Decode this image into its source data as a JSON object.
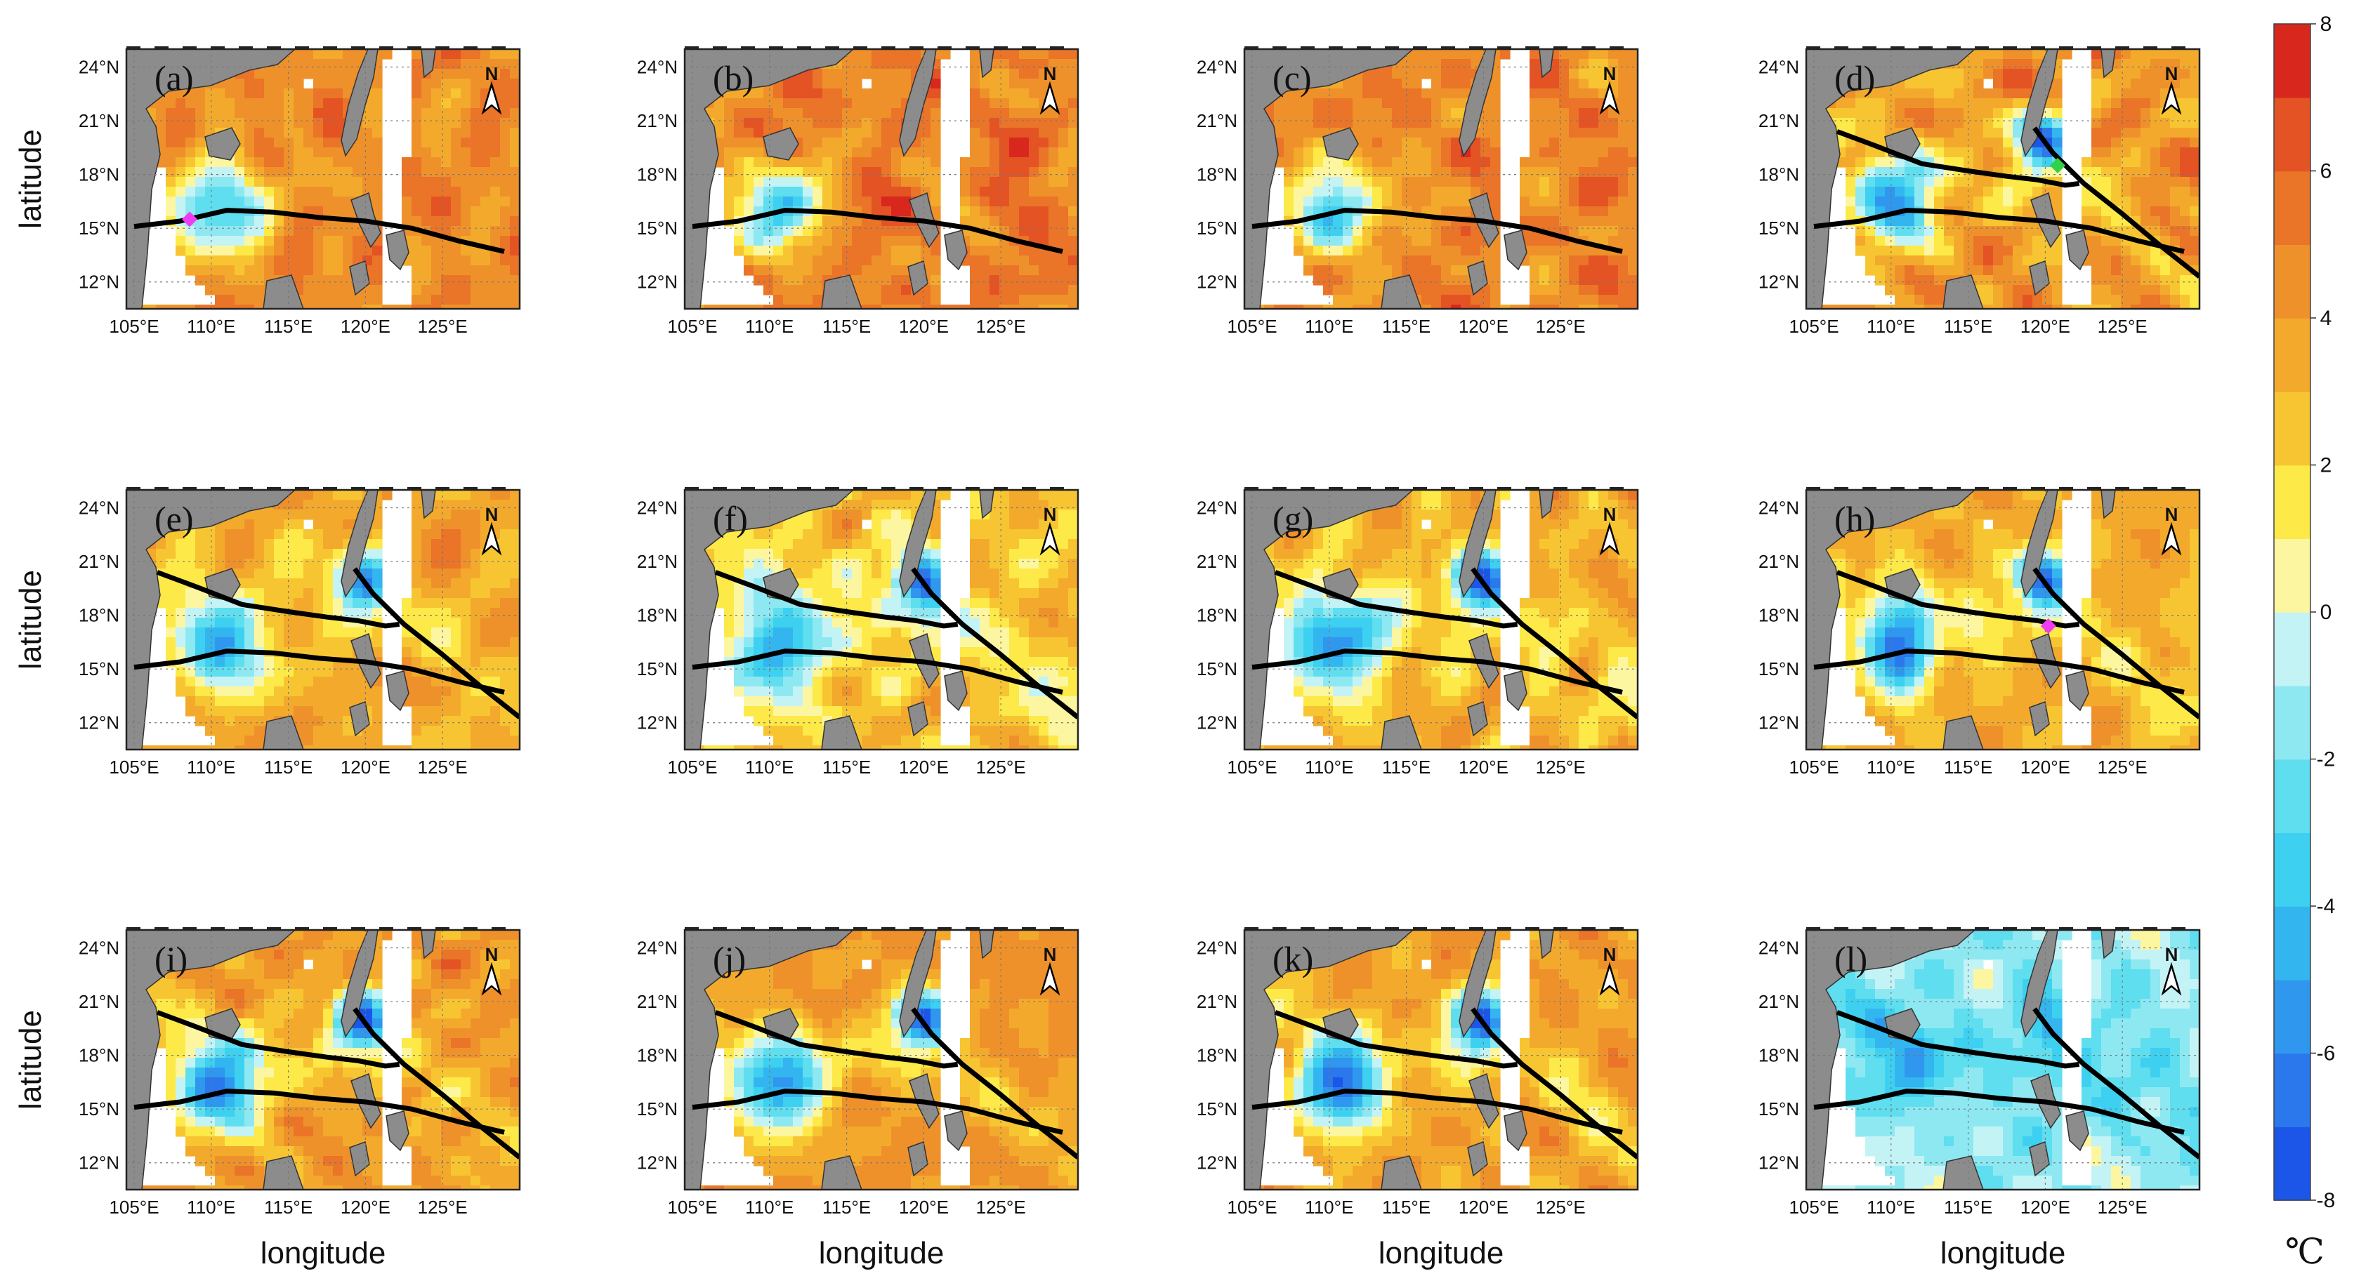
{
  "chart_data": {
    "type": "heatmap",
    "title": "",
    "xlabel": "longitude",
    "ylabel": "latitude",
    "ylabel_text": "latitude",
    "x_ticks": [
      "105°E",
      "110°E",
      "115°E",
      "120°E",
      "125°E"
    ],
    "y_ticks": [
      "24°N",
      "21°N",
      "18°N",
      "15°N",
      "12°N"
    ],
    "xlim": [
      104.5,
      130
    ],
    "ylim": [
      10.5,
      25
    ],
    "north_arrow": "N",
    "colorbar": {
      "min": -8,
      "max": 8,
      "ticks": [
        "8",
        "6",
        "4",
        "2",
        "0",
        "-2",
        "-4",
        "-6",
        "-8"
      ],
      "unit": "℃",
      "levels": [
        -8,
        -7,
        -6,
        -5,
        -4,
        -3,
        -2,
        -1,
        0,
        1,
        2,
        3,
        4,
        5,
        6,
        7,
        8
      ],
      "colors": [
        "#1c56e8",
        "#2a78ec",
        "#2f97ee",
        "#33b5f0",
        "#3dd0f0",
        "#5fdeef",
        "#8ee8f2",
        "#c4f3f6",
        "#fdf6a0",
        "#fde948",
        "#f8c532",
        "#f3aa2c",
        "#ef912a",
        "#ea7428",
        "#e45324",
        "#d8281e"
      ]
    },
    "panels": [
      {
        "label": "(a)",
        "mean": 4.6,
        "cold_core": -4.5,
        "tracks": [
          "track-1"
        ],
        "markers": [
          {
            "lon": 108.6,
            "lat": 15.5,
            "color": "#f03cf0"
          }
        ]
      },
      {
        "label": "(b)",
        "mean": 5.0,
        "cold_core": -3.0,
        "tracks": [
          "track-1"
        ],
        "markers": []
      },
      {
        "label": "(c)",
        "mean": 4.8,
        "cold_core": -3.5,
        "tracks": [
          "track-1"
        ],
        "markers": []
      },
      {
        "label": "(d)",
        "mean": 4.2,
        "cold_core": -5.0,
        "tracks": [
          "track-1",
          "track-2",
          "track-3"
        ],
        "markers": [
          {
            "lon": 120.8,
            "lat": 18.5,
            "color": "#31d24a"
          }
        ]
      },
      {
        "label": "(e)",
        "mean": 3.6,
        "cold_core": -4.5,
        "tracks": [
          "track-1",
          "track-2",
          "track-3"
        ],
        "markers": []
      },
      {
        "label": "(f)",
        "mean": 2.6,
        "cold_core": -5.5,
        "tracks": [
          "track-1",
          "track-2",
          "track-3"
        ],
        "markers": []
      },
      {
        "label": "(g)",
        "mean": 3.2,
        "cold_core": -6.0,
        "tracks": [
          "track-1",
          "track-2",
          "track-3"
        ],
        "markers": []
      },
      {
        "label": "(h)",
        "mean": 3.4,
        "cold_core": -5.5,
        "tracks": [
          "track-1",
          "track-2",
          "track-3"
        ],
        "markers": [
          {
            "lon": 120.2,
            "lat": 17.4,
            "color": "#f03cf0"
          }
        ]
      },
      {
        "label": "(i)",
        "mean": 4.0,
        "cold_core": -6.0,
        "tracks": [
          "track-1",
          "track-2",
          "track-3"
        ],
        "markers": []
      },
      {
        "label": "(j)",
        "mean": 4.2,
        "cold_core": -6.0,
        "tracks": [
          "track-1",
          "track-2",
          "track-3"
        ],
        "markers": []
      },
      {
        "label": "(k)",
        "mean": 3.8,
        "cold_core": -6.5,
        "tracks": [
          "track-1",
          "track-2",
          "track-3"
        ],
        "markers": []
      },
      {
        "label": "(l)",
        "mean": -1.2,
        "cold_core": -3.5,
        "tracks": [
          "track-1",
          "track-2",
          "track-3"
        ],
        "markers": []
      }
    ],
    "tracks": {
      "track-1": [
        [
          105,
          15.1
        ],
        [
          108,
          15.4
        ],
        [
          111,
          16.0
        ],
        [
          114,
          15.9
        ],
        [
          117,
          15.6
        ],
        [
          120,
          15.4
        ],
        [
          123,
          15.0
        ],
        [
          126,
          14.3
        ],
        [
          129,
          13.7
        ]
      ],
      "track-2": [
        [
          106.5,
          20.4
        ],
        [
          109,
          19.6
        ],
        [
          112,
          18.6
        ],
        [
          115,
          18.2
        ],
        [
          117.5,
          17.9
        ],
        [
          119.5,
          17.7
        ],
        [
          121.3,
          17.4
        ],
        [
          122.2,
          17.5
        ]
      ],
      "track-3": [
        [
          119.3,
          20.6
        ],
        [
          120.5,
          19.2
        ],
        [
          122.5,
          17.5
        ],
        [
          125,
          15.8
        ],
        [
          127.5,
          14.0
        ],
        [
          130,
          12.3
        ]
      ]
    }
  }
}
